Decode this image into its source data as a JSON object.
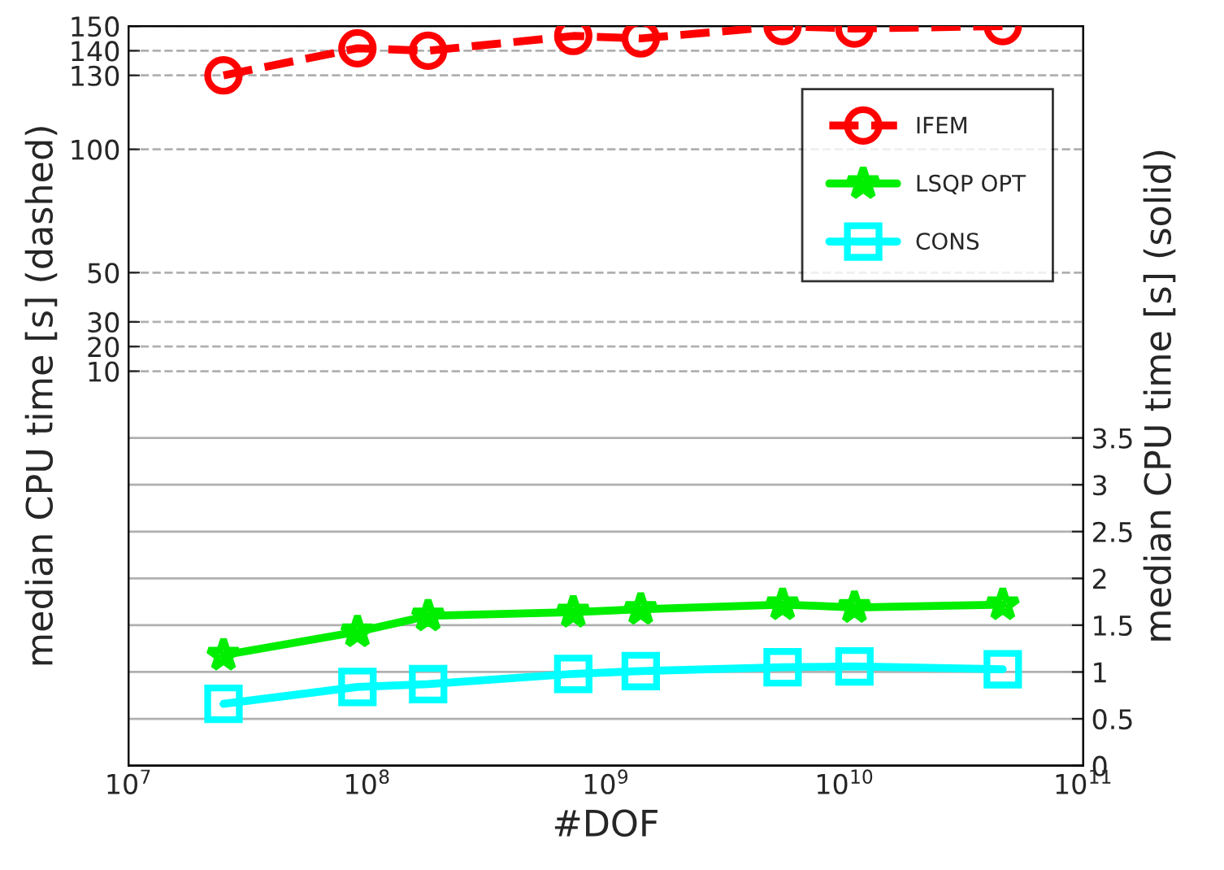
{
  "chart_data": {
    "type": "line",
    "xlabel": "#DOF",
    "ylabel": "median CPU time [s] (dashed)",
    "y2label": "median CPU time [s] (solid)",
    "x": [
      25000000.0,
      91000000.0,
      180000000.0,
      730000000.0,
      1400000000.0,
      5500000000.0,
      11000000000.0,
      46000000000.0
    ],
    "series": [
      {
        "name": "IFEM",
        "color": "#ff0000",
        "marker": "circle",
        "line_style": "dashed",
        "values": [
          130,
          141,
          140,
          146,
          145,
          150,
          149,
          150
        ]
      },
      {
        "name": "LSQP OPT",
        "color": "#00ee00",
        "marker": "star",
        "line_style": "solid",
        "axis": "y2",
        "values": [
          1.18,
          1.43,
          1.6,
          1.64,
          1.67,
          1.72,
          1.69,
          1.72
        ]
      },
      {
        "name": "CONS",
        "color": "#00ffff",
        "marker": "square",
        "line_style": "solid",
        "axis": "y2",
        "values": [
          0.66,
          0.84,
          0.87,
          0.98,
          1.01,
          1.05,
          1.06,
          1.03
        ]
      }
    ],
    "log": "x",
    "xlim": [
      10000000.0,
      100000000000.0
    ],
    "xticks": [
      {
        "value": 10000000.0,
        "label": "10$^{7}$"
      },
      {
        "value": 100000000.0,
        "label": "10$^{8}$"
      },
      {
        "value": 1000000000.0,
        "label": "10$^{9}$"
      },
      {
        "value": 10000000000.0,
        "label": "10$^{10}$"
      },
      {
        "value": 100000000000.0,
        "label": "10$^{11}$"
      }
    ],
    "ylim": [
      -150,
      150
    ],
    "yticks": [
      10,
      20,
      30,
      50,
      100,
      130,
      140,
      150
    ],
    "y2lim": [
      0,
      7.9
    ],
    "y2ticks": [
      0,
      0.5,
      1,
      1.5,
      2,
      2.5,
      3,
      3.5
    ],
    "grid": true,
    "legend": "top right"
  }
}
